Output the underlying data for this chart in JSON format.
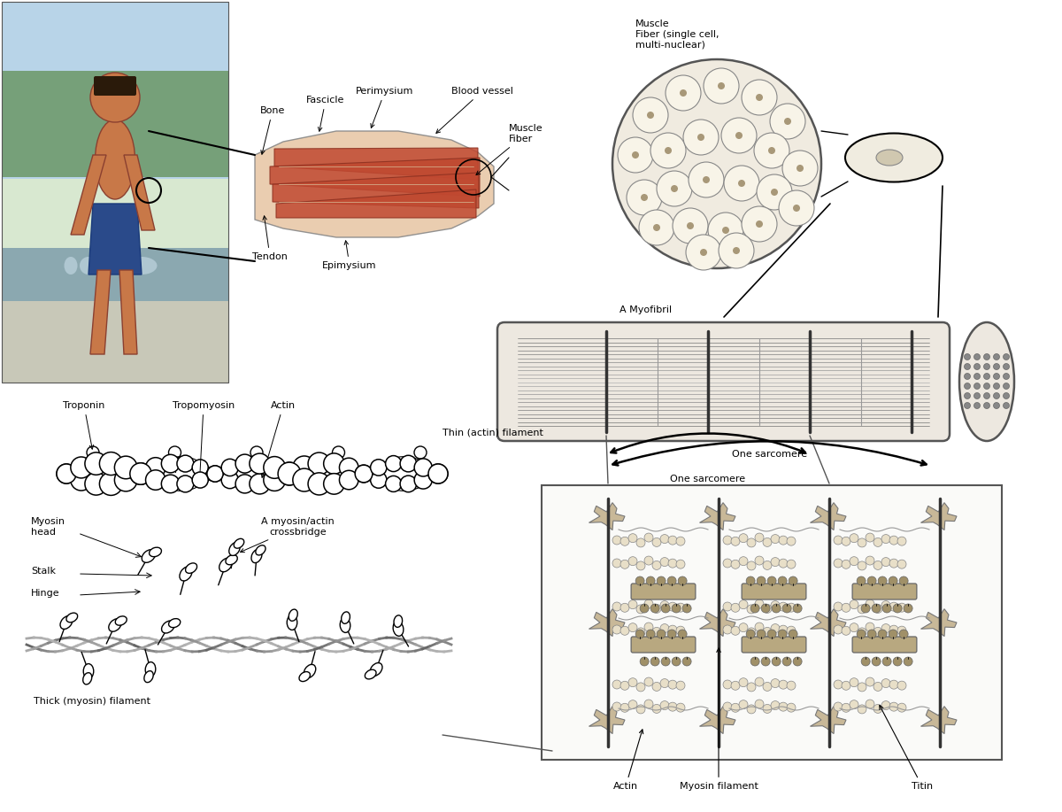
{
  "background_color": "#ffffff",
  "figure_width": 12.0,
  "figure_height": 9.17,
  "labels": {
    "muscle_fiber_title": "Muscle\nFiber (single cell,\nmulti-nuclear)",
    "a_myofibril": "A Myofibril",
    "one_sarcomere": "One sarcomere",
    "thin_actin_filament": "Thin (actin) filament",
    "thick_myosin_filament": "Thick (myosin) filament",
    "troponin": "Troponin",
    "tropomyosin": "Tropomyosin",
    "actin_label": "Actin",
    "myosin_head": "Myosin\nhead",
    "stalk": "Stalk",
    "hinge": "Hinge",
    "crossbridge": "A myosin/actin\ncrossbridge",
    "actin_bottom": "Actin",
    "myosin_filament_bottom": "Myosin filament",
    "titin": "Titin",
    "bone": "Bone",
    "fascicle": "Fascicle",
    "perimysium": "Perimysium",
    "blood_vessel": "Blood vessel",
    "muscle_fiber_label": "Muscle\nFiber",
    "tendon": "Tendon",
    "epimysium": "Epimysium"
  },
  "font_sizes": {
    "label": 8,
    "small_label": 7
  },
  "colors": {
    "background": "#ffffff",
    "muscle_outer": "#e8c8a8",
    "muscle_inner": "#c05030",
    "muscle_inner2": "#d06848",
    "fiber_fill": "#f8f0e0",
    "fiber_stroke": "#888888",
    "myofibril_fill": "#f0ece0",
    "sarcomere_fill": "#fafaf8",
    "actin_fill": "#ffffff",
    "text": "#000000",
    "line": "#000000",
    "zline": "#222222",
    "photo_sky": "#7aabcc",
    "photo_trees": "#4a7a3a",
    "photo_water": "#6898aa",
    "photo_skin": "#c8885a"
  }
}
